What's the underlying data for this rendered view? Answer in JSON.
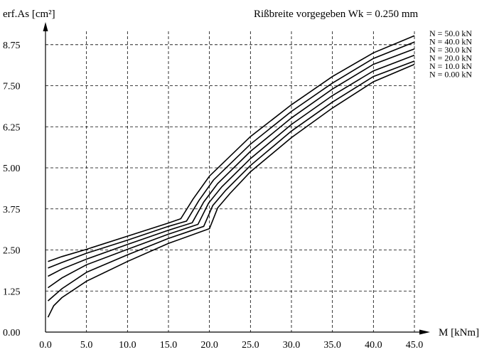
{
  "chart_data": {
    "type": "line",
    "title": "Rißbreite vorgegeben Wk = 0.250 mm",
    "ylabel": "erf.As [cm²]",
    "xlabel": "M [kNm]",
    "xlim": [
      0,
      45
    ],
    "ylim": [
      0,
      9.2
    ],
    "x_ticks": [
      0,
      5,
      10,
      15,
      20,
      25,
      30,
      35,
      40,
      45
    ],
    "x_tick_labels": [
      "0.0",
      "5.0",
      "10.0",
      "15.0",
      "20.0",
      "25.0",
      "30.0",
      "35.0",
      "40.0",
      "45.0"
    ],
    "y_ticks": [
      0,
      1.25,
      2.5,
      3.75,
      5,
      6.25,
      7.5,
      8.75
    ],
    "y_tick_labels": [
      "0.00",
      "1.25",
      "2.50",
      "3.75",
      "5.00",
      "6.25",
      "7.50",
      "8.75"
    ],
    "grid": true,
    "legend_position": "top-right",
    "legend": [
      "N = 50.0 kN",
      "N = 40.0 kN",
      "N = 30.0 kN",
      "N = 20.0 kN",
      "N = 10.0 kN",
      "N = 0.00 kN"
    ],
    "series": [
      {
        "name": "N = 50.0 kN",
        "points": [
          [
            0.3,
            2.15
          ],
          [
            2,
            2.3
          ],
          [
            5,
            2.52
          ],
          [
            10,
            2.92
          ],
          [
            15,
            3.32
          ],
          [
            16.5,
            3.45
          ],
          [
            18,
            4.05
          ],
          [
            20,
            4.75
          ],
          [
            25,
            5.95
          ],
          [
            30,
            6.92
          ],
          [
            35,
            7.78
          ],
          [
            40,
            8.5
          ],
          [
            45,
            9.02
          ]
        ]
      },
      {
        "name": "N = 40.0 kN",
        "points": [
          [
            0.3,
            1.95
          ],
          [
            2,
            2.12
          ],
          [
            5,
            2.4
          ],
          [
            10,
            2.8
          ],
          [
            15,
            3.22
          ],
          [
            17.2,
            3.38
          ],
          [
            18.7,
            4.0
          ],
          [
            20.5,
            4.63
          ],
          [
            25,
            5.72
          ],
          [
            30,
            6.72
          ],
          [
            35,
            7.58
          ],
          [
            40,
            8.33
          ],
          [
            45,
            8.83
          ]
        ]
      },
      {
        "name": "N = 30.0 kN",
        "points": [
          [
            0.3,
            1.7
          ],
          [
            2,
            1.92
          ],
          [
            5,
            2.22
          ],
          [
            10,
            2.67
          ],
          [
            15,
            3.1
          ],
          [
            17.9,
            3.33
          ],
          [
            19.3,
            3.96
          ],
          [
            21,
            4.52
          ],
          [
            25,
            5.5
          ],
          [
            30,
            6.52
          ],
          [
            35,
            7.4
          ],
          [
            40,
            8.15
          ],
          [
            45,
            8.62
          ]
        ]
      },
      {
        "name": "N = 20.0 kN",
        "points": [
          [
            0.3,
            1.35
          ],
          [
            2,
            1.65
          ],
          [
            5,
            2.05
          ],
          [
            10,
            2.52
          ],
          [
            15,
            2.98
          ],
          [
            18.6,
            3.28
          ],
          [
            19.9,
            3.93
          ],
          [
            21.5,
            4.42
          ],
          [
            25,
            5.28
          ],
          [
            30,
            6.32
          ],
          [
            35,
            7.2
          ],
          [
            40,
            7.95
          ],
          [
            45,
            8.43
          ]
        ]
      },
      {
        "name": "N = 10.0 kN",
        "points": [
          [
            0.3,
            0.95
          ],
          [
            2,
            1.32
          ],
          [
            5,
            1.82
          ],
          [
            10,
            2.35
          ],
          [
            15,
            2.85
          ],
          [
            19.3,
            3.22
          ],
          [
            20.4,
            3.85
          ],
          [
            22,
            4.32
          ],
          [
            25,
            5.07
          ],
          [
            30,
            6.12
          ],
          [
            35,
            7.0
          ],
          [
            40,
            7.78
          ],
          [
            45,
            8.25
          ]
        ]
      },
      {
        "name": "N = 0.00 kN",
        "points": [
          [
            0.3,
            0.45
          ],
          [
            1,
            0.8
          ],
          [
            2,
            1.05
          ],
          [
            5,
            1.55
          ],
          [
            10,
            2.15
          ],
          [
            15,
            2.7
          ],
          [
            20,
            3.15
          ],
          [
            21,
            3.78
          ],
          [
            22.5,
            4.22
          ],
          [
            25,
            4.88
          ],
          [
            30,
            5.92
          ],
          [
            35,
            6.82
          ],
          [
            40,
            7.62
          ],
          [
            45,
            8.15
          ]
        ]
      }
    ]
  }
}
